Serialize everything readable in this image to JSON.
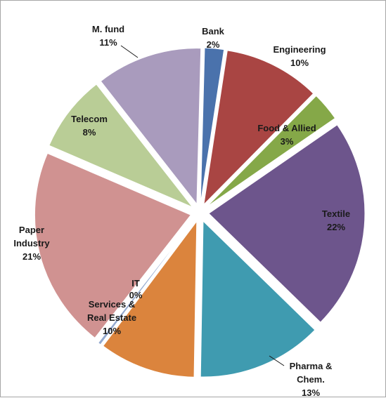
{
  "chart_data": {
    "type": "pie",
    "exploded": true,
    "slices": [
      {
        "label": "Bank",
        "label_lines": [
          "Bank"
        ],
        "value": 2,
        "pct_label": "2%",
        "color": "#4a72ac"
      },
      {
        "label": "Engineering",
        "label_lines": [
          "Engineering"
        ],
        "value": 10,
        "pct_label": "10%",
        "color": "#a94543"
      },
      {
        "label": "Food & Allied",
        "label_lines": [
          "Food & Allied"
        ],
        "value": 3,
        "pct_label": "3%",
        "color": "#85a848"
      },
      {
        "label": "Textile",
        "label_lines": [
          "Textile"
        ],
        "value": 22,
        "pct_label": "22%",
        "color": "#6d558c"
      },
      {
        "label": "Pharma & Chem.",
        "label_lines": [
          "Pharma &",
          "Chem."
        ],
        "value": 13,
        "pct_label": "13%",
        "color": "#3f9bb0"
      },
      {
        "label": "Services & Real Estate",
        "label_lines": [
          "Services &",
          "Real Estate"
        ],
        "value": 10,
        "pct_label": "10%",
        "color": "#db843d"
      },
      {
        "label": "IT",
        "label_lines": [
          "IT"
        ],
        "value": 0.3,
        "pct_label": "0%",
        "color": "#93a9cf"
      },
      {
        "label": "Paper Industry",
        "label_lines": [
          "Paper",
          "Industry"
        ],
        "value": 21,
        "pct_label": "21%",
        "color": "#d09291"
      },
      {
        "label": "Telecom",
        "label_lines": [
          "Telecom"
        ],
        "value": 8,
        "pct_label": "8%",
        "color": "#b9cd96"
      },
      {
        "label": "M. fund",
        "label_lines": [
          "M. fund"
        ],
        "value": 11,
        "pct_label": "11%",
        "color": "#a99bbd"
      }
    ]
  }
}
